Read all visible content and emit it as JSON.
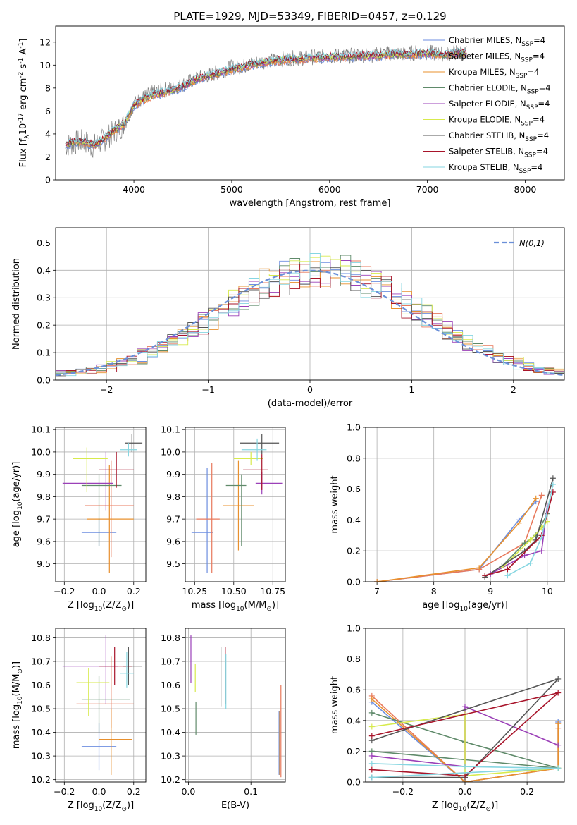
{
  "figure": {
    "title": "PLATE=1929, MJD=53349, FIBERID=0457, z=0.129"
  },
  "model_labels": [
    "Chabrier MILES, N$_{SSP}$=4",
    "Salpeter MILES, N$_{SSP}$=4",
    "Kroupa MILES, N$_{SSP}$=4",
    "Chabrier ELODIE, N$_{SSP}$=4",
    "Salpeter ELODIE, N$_{SSP}$=4",
    "Kroupa ELODIE, N$_{SSP}$=4",
    "Chabrier STELIB, N$_{SSP}$=4",
    "Salpeter STELIB, N$_{SSP}$=4",
    "Kroupa STELIB, N$_{SSP}$=4"
  ],
  "model_colors": [
    "#6d8ee0",
    "#e8795c",
    "#e8902e",
    "#5f8a6a",
    "#9b40b8",
    "#d7ea4d",
    "#555555",
    "#a8142a",
    "#86d6e1"
  ],
  "chart_data": [
    {
      "id": "spectrum",
      "type": "line",
      "xlabel": "wavelength [Angstrom, rest frame]",
      "ylabel": "Flux [f$_\\lambda$10$^{-17}$ erg cm$^{-2}$ s$^{-1}$ A$^{-1}$]",
      "xlim": [
        3200,
        8400
      ],
      "ylim": [
        0,
        13.4
      ],
      "xticks": [
        4000,
        5000,
        6000,
        7000,
        8000
      ],
      "yticks": [
        0,
        2,
        4,
        6,
        8,
        10,
        12
      ],
      "legend": "top-right",
      "data_x": [
        3300,
        3400,
        3500,
        3550,
        3600,
        3700,
        3800,
        3900,
        4000,
        4100,
        4200,
        4300,
        4400,
        4500,
        4600,
        4700,
        4800,
        4900,
        5000,
        5100,
        5200,
        5300,
        5400,
        5500,
        5600,
        5700,
        5800,
        5900,
        6000,
        6100,
        6200,
        6300,
        6400,
        6500,
        6600,
        6700,
        6800,
        6900,
        7000,
        7100,
        7200,
        7300,
        7400
      ],
      "data_y": [
        3.0,
        3.2,
        3.4,
        2.9,
        3.0,
        3.5,
        4.2,
        4.8,
        6.6,
        7.2,
        7.6,
        7.8,
        8.0,
        8.3,
        8.7,
        9.0,
        9.2,
        9.5,
        9.8,
        9.9,
        10.1,
        10.3,
        10.4,
        10.5,
        10.6,
        10.6,
        10.7,
        10.7,
        10.8,
        10.8,
        10.8,
        10.9,
        10.9,
        10.9,
        11.0,
        11.0,
        11.0,
        11.1,
        11.1,
        11.0,
        11.0,
        11.1,
        11.1
      ],
      "model_x": [
        3300,
        3400,
        3500,
        3600,
        3700,
        3800,
        3900,
        4000,
        4100,
        4200,
        4300,
        4400,
        4500,
        4600,
        4700,
        4800,
        4900,
        5000,
        5100,
        5200,
        5300,
        5400,
        5500,
        5600,
        5700,
        5800,
        5900,
        6000,
        6100,
        6200,
        6300,
        6400,
        6500,
        6600,
        6700,
        6800,
        6900,
        7000,
        7100,
        7200,
        7300,
        7400
      ],
      "model_y": [
        3.0,
        3.3,
        3.3,
        3.0,
        3.6,
        4.3,
        4.9,
        6.5,
        7.0,
        7.4,
        7.6,
        7.8,
        8.1,
        8.6,
        8.9,
        9.1,
        9.4,
        9.6,
        9.8,
        10.0,
        10.2,
        10.3,
        10.4,
        10.5,
        10.5,
        10.6,
        10.6,
        10.7,
        10.7,
        10.7,
        10.8,
        10.8,
        10.8,
        10.9,
        10.9,
        10.9,
        11.0,
        11.0,
        10.9,
        10.9,
        11.0,
        11.0
      ]
    },
    {
      "id": "residual_hist",
      "type": "line",
      "xlabel": "(data-model)/error",
      "ylabel": "Normed distribution",
      "xlim": [
        -2.5,
        2.5
      ],
      "ylim": [
        0,
        0.555
      ],
      "xticks": [
        -2,
        -1,
        0,
        1,
        2
      ],
      "yticks": [
        0.0,
        0.1,
        0.2,
        0.3,
        0.4,
        0.5
      ],
      "legend": "top-right",
      "gauss_label": "$\\mathcal{N}(0,1)$"
    },
    {
      "id": "age_vs_Z",
      "type": "scatter",
      "xlabel": "Z [log$_{10}$(Z/Z$_\\odot$)]",
      "ylabel": "age  [log$_{10}$(age/yr)]",
      "xlim": [
        -0.25,
        0.27
      ],
      "ylim": [
        9.42,
        10.11
      ],
      "xticks": [
        -0.2,
        0.0,
        0.2
      ],
      "yticks": [
        9.5,
        9.6,
        9.7,
        9.8,
        9.9,
        10.0,
        10.1
      ],
      "points": [
        {
          "x": 0.0,
          "xerr": [
            0.1,
            0.1
          ],
          "y": 9.64,
          "yerr": [
            0.06,
            0.06
          ]
        },
        {
          "x": 0.07,
          "xerr": [
            0.15,
            0.13
          ],
          "y": 9.76,
          "yerr": [
            0.23,
            0.2
          ]
        },
        {
          "x": 0.06,
          "xerr": [
            0.13,
            0.14
          ],
          "y": 9.7,
          "yerr": [
            0.24,
            0.24
          ]
        },
        {
          "x": 0.0,
          "xerr": [
            0.1,
            0.13
          ],
          "y": 9.85,
          "yerr": [
            0.27,
            0.05
          ]
        },
        {
          "x": 0.04,
          "xerr": [
            0.25,
            0.04
          ],
          "y": 9.86,
          "yerr": [
            0.12,
            0.14
          ]
        },
        {
          "x": -0.07,
          "xerr": [
            0.08,
            0.12
          ],
          "y": 9.97,
          "yerr": [
            0.15,
            0.05
          ]
        },
        {
          "x": 0.19,
          "xerr": [
            0.04,
            0.06
          ],
          "y": 10.04,
          "yerr": [
            0.04,
            0.04
          ]
        },
        {
          "x": 0.1,
          "xerr": [
            0.1,
            0.1
          ],
          "y": 9.92,
          "yerr": [
            0.08,
            0.08
          ]
        },
        {
          "x": 0.17,
          "xerr": [
            0.05,
            0.05
          ],
          "y": 10.01,
          "yerr": [
            0.03,
            0.03
          ]
        }
      ]
    },
    {
      "id": "age_vs_mass",
      "type": "scatter",
      "xlabel": "mass [log$_{10}$(M/M$_\\odot$)]",
      "ylabel": "",
      "xlim": [
        10.19,
        10.83
      ],
      "ylim": [
        9.42,
        10.11
      ],
      "xticks": [
        10.25,
        10.5,
        10.75
      ],
      "yticks": [
        9.5,
        9.6,
        9.7,
        9.8,
        9.9,
        10.0,
        10.1
      ],
      "points": [
        {
          "x": 10.33,
          "xerr": [
            0.1,
            0.04
          ],
          "y": 9.64,
          "yerr": [
            0.18,
            0.29
          ]
        },
        {
          "x": 10.36,
          "xerr": [
            0.1,
            0.05
          ],
          "y": 9.7,
          "yerr": [
            0.24,
            0.25
          ]
        },
        {
          "x": 10.53,
          "xerr": [
            0.1,
            0.1
          ],
          "y": 9.76,
          "yerr": [
            0.2,
            0.2
          ]
        },
        {
          "x": 10.55,
          "xerr": [
            0.1,
            0.03
          ],
          "y": 9.85,
          "yerr": [
            0.27,
            0.05
          ]
        },
        {
          "x": 10.68,
          "xerr": [
            0.04,
            0.13
          ],
          "y": 9.86,
          "yerr": [
            0.05,
            0.05
          ]
        },
        {
          "x": 10.61,
          "xerr": [
            0.11,
            0.08
          ],
          "y": 9.97,
          "yerr": [
            0.03,
            0.03
          ]
        },
        {
          "x": 10.68,
          "xerr": [
            0.14,
            0.11
          ],
          "y": 10.04,
          "yerr": [
            0.05,
            0.04
          ]
        },
        {
          "x": 10.68,
          "xerr": [
            0.12,
            0.04
          ],
          "y": 9.92,
          "yerr": [
            0.09,
            0.07
          ]
        },
        {
          "x": 10.65,
          "xerr": [
            0.1,
            0.06
          ],
          "y": 10.01,
          "yerr": [
            0.05,
            0.05
          ]
        }
      ]
    },
    {
      "id": "weight_vs_age",
      "type": "line",
      "xlabel": "age  [log$_{10}$(age/yr)]",
      "ylabel": "mass weight",
      "xlim": [
        6.8,
        10.3
      ],
      "ylim": [
        0,
        1.0
      ],
      "xticks": [
        7,
        8,
        9,
        10
      ],
      "yticks": [
        0.0,
        0.2,
        0.4,
        0.6,
        0.8,
        1.0
      ],
      "series": [
        {
          "x": [
            7.0,
            8.8,
            9.5,
            9.8
          ],
          "y": [
            0.0,
            0.08,
            0.4,
            0.52
          ]
        },
        {
          "x": [
            7.0,
            8.8,
            9.6,
            9.9
          ],
          "y": [
            0.0,
            0.08,
            0.25,
            0.56
          ]
        },
        {
          "x": [
            7.0,
            8.8,
            9.5,
            9.8
          ],
          "y": [
            0.0,
            0.09,
            0.38,
            0.54
          ]
        },
        {
          "x": [
            9.2,
            9.6,
            9.8,
            10.0
          ],
          "y": [
            0.1,
            0.25,
            0.3,
            0.44
          ]
        },
        {
          "x": [
            9.0,
            9.6,
            9.9,
            10.0
          ],
          "y": [
            0.05,
            0.17,
            0.2,
            0.49
          ]
        },
        {
          "x": [
            9.2,
            9.7,
            9.9,
            10.0
          ],
          "y": [
            0.09,
            0.27,
            0.35,
            0.39
          ]
        },
        {
          "x": [
            8.9,
            9.6,
            9.8,
            10.1
          ],
          "y": [
            0.03,
            0.2,
            0.27,
            0.67
          ]
        },
        {
          "x": [
            8.9,
            9.3,
            9.9,
            10.1
          ],
          "y": [
            0.04,
            0.08,
            0.3,
            0.58
          ]
        },
        {
          "x": [
            9.3,
            9.7,
            9.9,
            10.1
          ],
          "y": [
            0.04,
            0.12,
            0.29,
            0.63
          ]
        }
      ]
    },
    {
      "id": "mass_vs_Z",
      "type": "scatter",
      "xlabel": "Z [log$_{10}$(Z/Z$_\\odot$)]",
      "ylabel": "mass [log$_{10}$(M/M$_\\odot$)]",
      "xlim": [
        -0.25,
        0.27
      ],
      "ylim": [
        10.19,
        10.84
      ],
      "xticks": [
        -0.2,
        0.0,
        0.2
      ],
      "yticks": [
        10.2,
        10.3,
        10.4,
        10.5,
        10.6,
        10.7,
        10.8
      ],
      "points": [
        {
          "x": 0.0,
          "xerr": [
            0.1,
            0.1
          ],
          "y": 10.34,
          "yerr": [
            0.1,
            0.1
          ]
        },
        {
          "x": 0.07,
          "xerr": [
            0.2,
            0.13
          ],
          "y": 10.52,
          "yerr": [
            0.1,
            0.2
          ]
        },
        {
          "x": 0.07,
          "xerr": [
            0.07,
            0.12
          ],
          "y": 10.37,
          "yerr": [
            0.15,
            0.13
          ]
        },
        {
          "x": 0.0,
          "xerr": [
            0.1,
            0.18
          ],
          "y": 10.54,
          "yerr": [
            0.14,
            0.1
          ]
        },
        {
          "x": 0.04,
          "xerr": [
            0.25,
            0.07
          ],
          "y": 10.68,
          "yerr": [
            0.16,
            0.13
          ]
        },
        {
          "x": -0.06,
          "xerr": [
            0.07,
            0.12
          ],
          "y": 10.61,
          "yerr": [
            0.14,
            0.06
          ]
        },
        {
          "x": 0.17,
          "xerr": [
            0.03,
            0.08
          ],
          "y": 10.68,
          "yerr": [
            0.08,
            0.08
          ]
        },
        {
          "x": 0.09,
          "xerr": [
            0.09,
            0.1
          ],
          "y": 10.68,
          "yerr": [
            0.08,
            0.08
          ]
        },
        {
          "x": 0.16,
          "xerr": [
            0.04,
            0.04
          ],
          "y": 10.65,
          "yerr": [
            0.06,
            0.09
          ]
        }
      ]
    },
    {
      "id": "mass_vs_ebv",
      "type": "scatter",
      "xlabel": "E(B-V)",
      "ylabel": "",
      "xlim": [
        -0.005,
        0.155
      ],
      "ylim": [
        10.19,
        10.84
      ],
      "xticks": [
        0.0,
        0.1
      ],
      "yticks": [
        10.2,
        10.3,
        10.4,
        10.5,
        10.6,
        10.7,
        10.8
      ],
      "points": [
        {
          "x": 0.145,
          "y": 10.35,
          "yerr": [
            0.13,
            0.14
          ]
        },
        {
          "x": 0.148,
          "y": 10.4,
          "yerr": [
            0.19,
            0.2
          ]
        },
        {
          "x": 0.146,
          "y": 10.36,
          "yerr": [
            0.14,
            0.13
          ]
        },
        {
          "x": 0.012,
          "y": 10.46,
          "yerr": [
            0.07,
            0.07
          ]
        },
        {
          "x": 0.004,
          "y": 10.7,
          "yerr": [
            0.09,
            0.11
          ]
        },
        {
          "x": 0.011,
          "y": 10.62,
          "yerr": [
            0.05,
            0.07
          ]
        },
        {
          "x": 0.052,
          "y": 10.63,
          "yerr": [
            0.12,
            0.13
          ]
        },
        {
          "x": 0.059,
          "y": 10.64,
          "yerr": [
            0.12,
            0.12
          ]
        },
        {
          "x": 0.06,
          "y": 10.57,
          "yerr": [
            0.07,
            0.16
          ]
        }
      ]
    },
    {
      "id": "weight_vs_Z",
      "type": "line",
      "xlabel": "Z [log$_{10}$(Z/Z$_\\odot$)]",
      "ylabel": "mass weight",
      "xlim": [
        -0.32,
        0.32
      ],
      "ylim": [
        0,
        1.0
      ],
      "xticks": [
        -0.2,
        0.0,
        0.2
      ],
      "yticks": [
        0.0,
        0.2,
        0.4,
        0.6,
        0.8,
        1.0
      ],
      "series": [
        {
          "x": [
            -0.3,
            0.0,
            0.3,
            0.3
          ],
          "y": [
            0.52,
            0.0,
            0.09,
            0.39
          ]
        },
        {
          "x": [
            -0.3,
            0.0,
            0.3,
            0.3
          ],
          "y": [
            0.56,
            0.0,
            0.09,
            0.35
          ]
        },
        {
          "x": [
            -0.3,
            0.0,
            0.3,
            0.3
          ],
          "y": [
            0.54,
            0.0,
            0.09,
            0.38
          ]
        },
        {
          "x": [
            -0.3,
            0.0,
            0.3,
            -0.3
          ],
          "y": [
            0.45,
            0.26,
            0.09,
            0.2
          ]
        },
        {
          "x": [
            -0.3,
            0.0,
            0.0,
            0.3
          ],
          "y": [
            0.17,
            0.1,
            0.49,
            0.24
          ]
        },
        {
          "x": [
            -0.3,
            0.0,
            0.0,
            0.3
          ],
          "y": [
            0.36,
            0.44,
            0.04,
            0.09
          ]
        },
        {
          "x": [
            -0.3,
            0.0,
            0.3,
            -0.3
          ],
          "y": [
            0.03,
            0.03,
            0.67,
            0.27
          ]
        },
        {
          "x": [
            -0.3,
            0.0,
            0.3,
            -0.3
          ],
          "y": [
            0.08,
            0.04,
            0.58,
            0.3
          ]
        },
        {
          "x": [
            -0.3,
            0.0,
            0.3,
            -0.3
          ],
          "y": [
            0.12,
            0.1,
            0.09,
            0.03
          ]
        }
      ]
    }
  ]
}
